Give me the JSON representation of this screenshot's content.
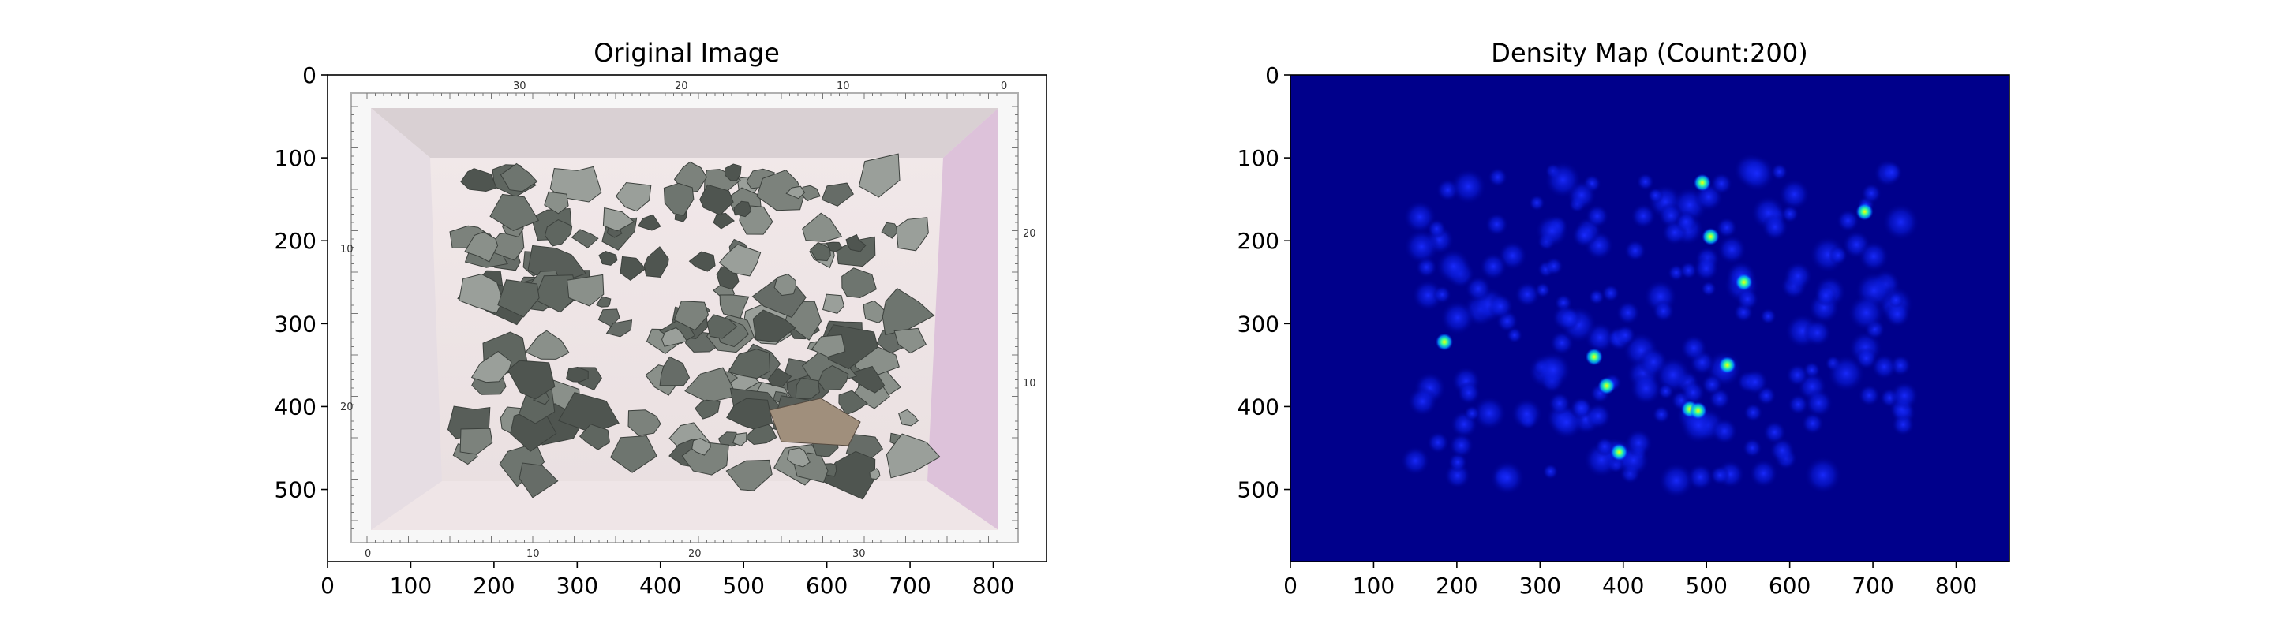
{
  "chart_data": [
    {
      "type": "image",
      "title": "Original Image",
      "x_ticks": [
        "0",
        "100",
        "200",
        "300",
        "400",
        "500",
        "600",
        "700",
        "800"
      ],
      "y_ticks": [
        "0",
        "100",
        "200",
        "300",
        "400",
        "500"
      ],
      "xlim": [
        0,
        864
      ],
      "ylim": [
        587,
        0
      ],
      "content": "photo of gravel/rocks in a white box with measuring ruler",
      "ruler_numbers_top": [
        "30",
        "20",
        "10",
        "0"
      ],
      "ruler_numbers_bottom": [
        "0",
        "10",
        "20",
        "30"
      ],
      "ruler_numbers_side": [
        "20",
        "10",
        "20",
        "10"
      ]
    },
    {
      "type": "heatmap",
      "title": "Density Map (Count:200)",
      "count": 200,
      "colormap": "jet",
      "x_ticks": [
        "0",
        "100",
        "200",
        "300",
        "400",
        "500",
        "600",
        "700",
        "800"
      ],
      "y_ticks": [
        "0",
        "100",
        "200",
        "300",
        "400",
        "500"
      ],
      "xlim": [
        0,
        864
      ],
      "ylim": [
        587,
        0
      ],
      "hotspots": [
        {
          "x": 545,
          "y": 250
        },
        {
          "x": 365,
          "y": 340
        },
        {
          "x": 480,
          "y": 403
        },
        {
          "x": 490,
          "y": 405
        },
        {
          "x": 185,
          "y": 322
        },
        {
          "x": 505,
          "y": 195
        },
        {
          "x": 380,
          "y": 375
        },
        {
          "x": 395,
          "y": 455
        },
        {
          "x": 525,
          "y": 350
        },
        {
          "x": 495,
          "y": 130
        },
        {
          "x": 690,
          "y": 165
        }
      ]
    }
  ]
}
